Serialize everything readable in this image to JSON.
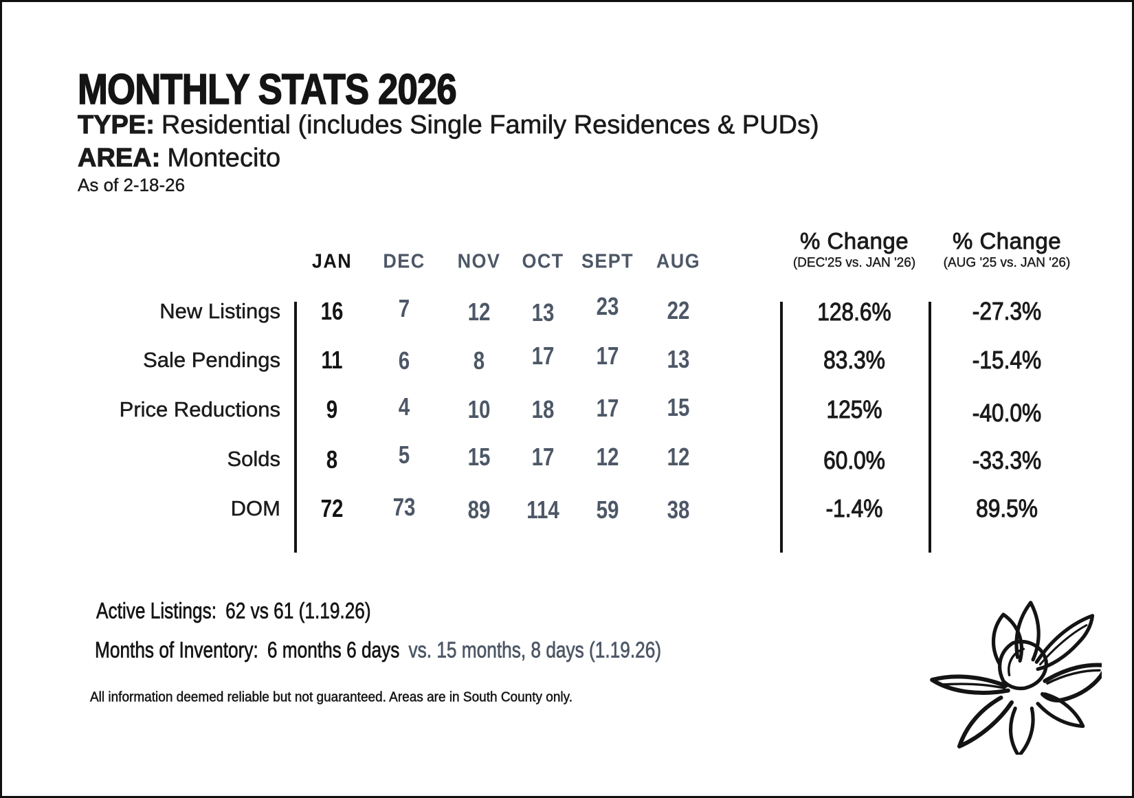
{
  "header": {
    "title": "MONTHLY STATS 2026",
    "type_label": "TYPE:",
    "type_value": "Residential (includes Single Family Residences & PUDs)",
    "area_label": "AREA:",
    "area_value": "Montecito",
    "as_of": "As of 2-18-26"
  },
  "table": {
    "month_columns": [
      "JAN",
      "DEC",
      "NOV",
      "OCT",
      "SEPT",
      "AUG"
    ],
    "pct_columns": [
      {
        "title": "% Change",
        "subtitle": "(DEC'25 vs. JAN '26)"
      },
      {
        "title": "% Change",
        "subtitle": "(AUG '25 vs. JAN '26)"
      }
    ],
    "rows": [
      {
        "label": "New Listings",
        "values": [
          16,
          7,
          12,
          13,
          23,
          22
        ],
        "pct": [
          "128.6%",
          "-27.3%"
        ]
      },
      {
        "label": "Sale Pendings",
        "values": [
          11,
          6,
          8,
          17,
          17,
          13
        ],
        "pct": [
          "83.3%",
          "-15.4%"
        ]
      },
      {
        "label": "Price Reductions",
        "values": [
          9,
          4,
          10,
          18,
          17,
          15
        ],
        "pct": [
          "125%",
          "-40.0%"
        ]
      },
      {
        "label": "Solds",
        "values": [
          8,
          5,
          15,
          17,
          12,
          12
        ],
        "pct": [
          "60.0%",
          "-33.3%"
        ]
      },
      {
        "label": "DOM",
        "values": [
          72,
          73,
          89,
          114,
          59,
          38
        ],
        "pct": [
          "-1.4%",
          "89.5%"
        ]
      }
    ]
  },
  "footer": {
    "active_listings_label": "Active Listings:",
    "active_listings_value": "62 vs 61 (1.19.26)",
    "inventory_label": "Months of Inventory:",
    "inventory_current": "6 months 6 days",
    "inventory_prior": "vs. 15 months, 8 days (1.19.26)",
    "disclaimer": "All information deemed reliable but not guaranteed. Areas are in South County only."
  },
  "icons": {
    "flower": "magnolia-flower-line-art"
  },
  "colors": {
    "ink": "#141414",
    "slate": "#4d5766",
    "background": "#ffffff"
  }
}
